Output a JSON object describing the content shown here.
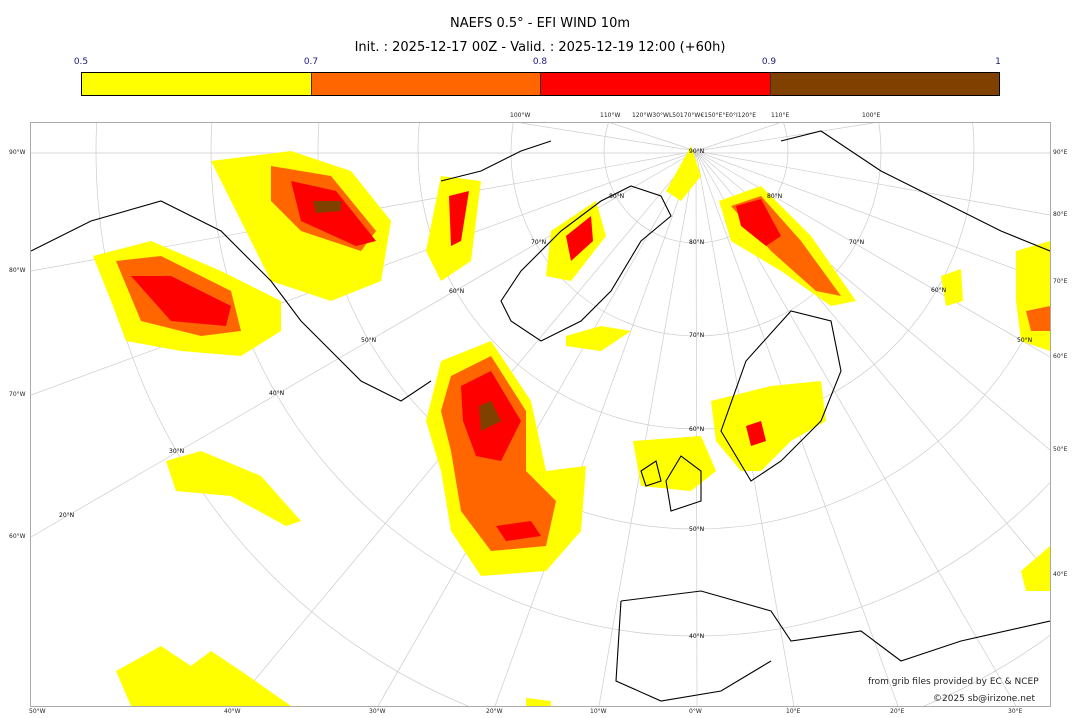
{
  "title": "NAEFS 0.5° - EFI WIND 10m",
  "subtitle": "Init. : 2025-12-17 00Z - Valid. : 2025-12-19 12:00 (+60h)",
  "colorbar": {
    "labels": [
      "0.5",
      "0.7",
      "0.8",
      "0.9",
      "1"
    ],
    "colors": [
      "#ffff00",
      "#ff6600",
      "#ff0000",
      "#804000"
    ]
  },
  "grid_labels": {
    "left": [
      "90°W",
      "80°W",
      "70°W",
      "60°W"
    ],
    "right": [
      "90°E",
      "80°E",
      "70°E",
      "60°E",
      "50°E",
      "40°E"
    ],
    "bottom": [
      "50°W",
      "40°W",
      "30°W",
      "20°W",
      "10°W",
      "0°W",
      "10°E",
      "20°E",
      "30°E"
    ],
    "top": [
      "100°W",
      "110°W",
      "120°W30°WL50170°W€150°E°E0°I120°E",
      "110°E",
      "100°E"
    ],
    "lat": [
      "90°N",
      "80°N",
      "70°N",
      "60°N",
      "50°N",
      "40°N",
      "50°N",
      "40°N",
      "30°N",
      "20°N",
      "60°N",
      "70°N",
      "80°N",
      "80°N",
      "70°N",
      "60°N",
      "50°N"
    ]
  },
  "credits": {
    "source": "from grib files provided by EC & NCEP",
    "copyright": "©2025 sb@irizone.net"
  }
}
